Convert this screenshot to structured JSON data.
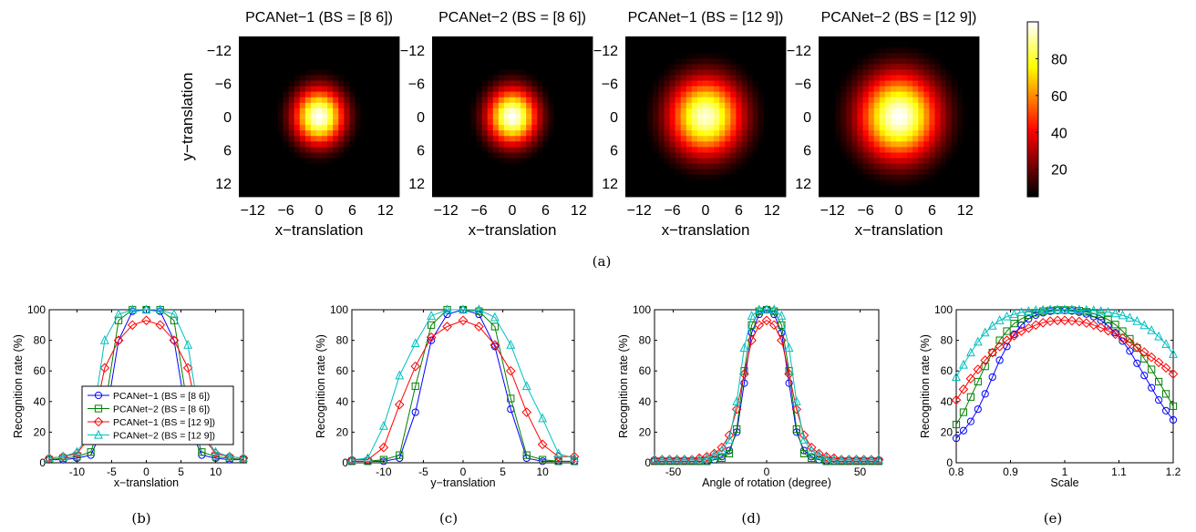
{
  "heatmaps": {
    "panels": [
      {
        "title": "PCANet−1 (BS = [8 6])",
        "sigma_x": 3.2,
        "sigma_y": 3.6,
        "peak": 100
      },
      {
        "title": "PCANet−2 (BS = [8 6])",
        "sigma_x": 3.2,
        "sigma_y": 3.6,
        "peak": 100
      },
      {
        "title": "PCANet−1 (BS = [12 9])",
        "sigma_x": 4.6,
        "sigma_y": 4.9,
        "peak": 96
      },
      {
        "title": "PCANet−2 (BS = [12 9])",
        "sigma_x": 5.0,
        "sigma_y": 5.4,
        "peak": 100
      }
    ],
    "grid_range": [
      -14,
      14
    ],
    "xlabel": "x−translation",
    "ylabel": "y−translation",
    "ticks": [
      "−12",
      "−6",
      "0",
      "6",
      "12"
    ],
    "tick_values": [
      -12,
      -6,
      0,
      6,
      12
    ],
    "colorbar": {
      "ticks": [
        "80",
        "60",
        "40",
        "20"
      ],
      "tick_values": [
        80,
        60,
        40,
        20
      ],
      "range": [
        5,
        100
      ]
    },
    "caption": "(a)"
  },
  "chart_data": [
    {
      "type": "line",
      "caption": "(b)",
      "xlabel": "x−translation",
      "ylabel": "Recognition rate (%)",
      "xlim": [
        -14,
        14
      ],
      "ylim": [
        0,
        100
      ],
      "xticks": [
        -10,
        -5,
        0,
        5,
        10
      ],
      "yticks": [
        0,
        20,
        40,
        60,
        80,
        100
      ],
      "x": [
        -14,
        -12,
        -10,
        -8,
        -6,
        -4,
        -2,
        0,
        2,
        4,
        6,
        8,
        10,
        12,
        14
      ],
      "legend": {
        "position": "bottom-left"
      },
      "series": [
        {
          "name": "PCANet−1 (BS = [8 6])",
          "color": "#0000ff",
          "marker": "circle",
          "values": [
            2,
            2,
            3,
            5,
            25,
            80,
            99,
            100,
            99,
            80,
            25,
            5,
            3,
            2,
            2
          ]
        },
        {
          "name": "PCANet−2 (BS = [8 6])",
          "color": "#008000",
          "marker": "square",
          "values": [
            2,
            3,
            4,
            7,
            35,
            93,
            100,
            100,
            100,
            93,
            35,
            7,
            4,
            3,
            2
          ]
        },
        {
          "name": "PCANet−1 (BS = [12 9])",
          "color": "#ff0000",
          "marker": "diamond",
          "values": [
            3,
            4,
            6,
            18,
            62,
            80,
            90,
            93,
            90,
            80,
            62,
            18,
            6,
            4,
            3
          ]
        },
        {
          "name": "PCANet−2 (BS = [12 9])",
          "color": "#00bfbf",
          "marker": "triangle",
          "values": [
            3,
            4,
            7,
            20,
            80,
            97,
            100,
            100,
            100,
            97,
            77,
            20,
            7,
            4,
            3
          ]
        }
      ]
    },
    {
      "type": "line",
      "caption": "(c)",
      "xlabel": "y−translation",
      "ylabel": "Recognition rate (%)",
      "xlim": [
        -14,
        14
      ],
      "ylim": [
        0,
        100
      ],
      "xticks": [
        -10,
        -5,
        0,
        5,
        10
      ],
      "yticks": [
        0,
        20,
        40,
        60,
        80,
        100
      ],
      "x": [
        -14,
        -12,
        -10,
        -8,
        -6,
        -4,
        -2,
        0,
        2,
        4,
        6,
        8,
        10,
        12,
        14
      ],
      "series": [
        {
          "name": "PCANet−1 (BS = [8 6])",
          "color": "#0000ff",
          "marker": "circle",
          "values": [
            1,
            1,
            1,
            3,
            33,
            80,
            97,
            100,
            97,
            76,
            35,
            3,
            1,
            1,
            1
          ]
        },
        {
          "name": "PCANet−2 (BS = [8 6])",
          "color": "#008000",
          "marker": "square",
          "values": [
            1,
            1,
            2,
            5,
            50,
            90,
            100,
            100,
            99,
            89,
            42,
            5,
            2,
            1,
            1
          ]
        },
        {
          "name": "PCANet−1 (BS = [12 9])",
          "color": "#ff0000",
          "marker": "diamond",
          "values": [
            2,
            2,
            10,
            38,
            63,
            82,
            89,
            93,
            89,
            77,
            60,
            33,
            12,
            4,
            4
          ]
        },
        {
          "name": "PCANet−2 (BS = [12 9])",
          "color": "#00bfbf",
          "marker": "triangle",
          "values": [
            2,
            3,
            24,
            57,
            78,
            96,
            100,
            100,
            100,
            95,
            77,
            50,
            29,
            6,
            3
          ]
        }
      ]
    },
    {
      "type": "line",
      "caption": "(d)",
      "xlabel": "Angle of rotation (degree)",
      "ylabel": "Recognition rate (%)",
      "xlim": [
        -60,
        60
      ],
      "ylim": [
        0,
        100
      ],
      "xticks": [
        -50,
        0,
        50
      ],
      "yticks": [
        0,
        20,
        40,
        60,
        80,
        100
      ],
      "x": [
        -60,
        -56,
        -52,
        -48,
        -44,
        -40,
        -36,
        -32,
        -28,
        -24,
        -20,
        -16,
        -12,
        -8,
        -4,
        0,
        4,
        8,
        12,
        16,
        20,
        24,
        28,
        32,
        36,
        40,
        44,
        48,
        52,
        56,
        60
      ],
      "series": [
        {
          "name": "PCANet−1 (BS = [8 6])",
          "color": "#0000ff",
          "marker": "circle",
          "values": [
            1,
            1,
            1,
            1,
            1,
            1,
            1,
            1,
            2,
            4,
            8,
            20,
            52,
            85,
            97,
            100,
            97,
            85,
            52,
            20,
            8,
            4,
            2,
            1,
            1,
            1,
            1,
            1,
            1,
            1,
            1
          ]
        },
        {
          "name": "PCANet−2 (BS = [8 6])",
          "color": "#008000",
          "marker": "square",
          "values": [
            1,
            1,
            1,
            1,
            1,
            1,
            1,
            1,
            2,
            3,
            6,
            22,
            60,
            90,
            99,
            100,
            99,
            90,
            60,
            22,
            6,
            3,
            2,
            1,
            1,
            1,
            1,
            1,
            1,
            1,
            1
          ]
        },
        {
          "name": "PCANet−1 (BS = [12 9])",
          "color": "#ff0000",
          "marker": "diamond",
          "values": [
            2,
            2,
            2,
            2,
            2,
            2,
            3,
            4,
            6,
            10,
            18,
            35,
            58,
            80,
            90,
            93,
            90,
            80,
            58,
            35,
            18,
            10,
            6,
            4,
            3,
            2,
            2,
            2,
            2,
            2,
            2
          ]
        },
        {
          "name": "PCANet−2 (BS = [12 9])",
          "color": "#00bfbf",
          "marker": "triangle",
          "values": [
            2,
            2,
            2,
            2,
            2,
            2,
            2,
            3,
            5,
            8,
            15,
            40,
            75,
            96,
            100,
            100,
            100,
            96,
            75,
            40,
            15,
            8,
            5,
            3,
            2,
            2,
            2,
            2,
            2,
            2,
            2
          ]
        }
      ]
    },
    {
      "type": "line",
      "caption": "(e)",
      "xlabel": "Scale",
      "ylabel": "Recognition rate (%)",
      "xlim": [
        0.8,
        1.2
      ],
      "ylim": [
        0,
        100
      ],
      "xticks": [
        0.8,
        0.9,
        1,
        1.1,
        1.2
      ],
      "xtick_labels": [
        "0.8",
        "0.9",
        "1",
        "1.1",
        "1.2"
      ],
      "yticks": [
        0,
        20,
        40,
        60,
        80,
        100
      ],
      "x": [
        0.8,
        0.8133,
        0.8267,
        0.84,
        0.8533,
        0.8667,
        0.88,
        0.8933,
        0.9067,
        0.92,
        0.9333,
        0.9467,
        0.96,
        0.9733,
        0.9867,
        1.0,
        1.0133,
        1.0267,
        1.04,
        1.0533,
        1.0667,
        1.08,
        1.0933,
        1.1067,
        1.12,
        1.1333,
        1.1467,
        1.16,
        1.1733,
        1.1867,
        1.2
      ],
      "series": [
        {
          "name": "PCANet−1 (BS = [8 6])",
          "color": "#0000ff",
          "marker": "circle",
          "values": [
            16,
            21,
            27,
            35,
            45,
            56,
            67,
            76,
            84,
            90,
            94,
            96.5,
            98,
            99,
            99.5,
            99.5,
            99.2,
            98.4,
            97.2,
            95.5,
            93,
            89.5,
            85,
            79.5,
            73,
            65,
            57,
            49,
            41,
            34,
            28
          ]
        },
        {
          "name": "PCANet−2 (BS = [8 6])",
          "color": "#008000",
          "marker": "square",
          "values": [
            25,
            33,
            43,
            53,
            63,
            72,
            80,
            86,
            91,
            94,
            96.5,
            98,
            99,
            99.5,
            99.8,
            99.8,
            99.7,
            99.3,
            98.6,
            97.5,
            95.8,
            93.5,
            90.3,
            86,
            81,
            75,
            68,
            61,
            53,
            45,
            37
          ]
        },
        {
          "name": "PCANet−1 (BS = [12 9])",
          "color": "#ff0000",
          "marker": "diamond",
          "values": [
            41,
            48,
            55,
            61,
            67,
            72,
            76,
            80,
            83,
            86,
            88,
            90,
            91.5,
            92.5,
            93,
            93,
            92.8,
            92.3,
            91.3,
            90,
            88.3,
            86.3,
            84,
            81.5,
            78.6,
            75.5,
            72.3,
            69,
            65.6,
            62,
            58
          ]
        },
        {
          "name": "PCANet−2 (BS = [12 9])",
          "color": "#00bfbf",
          "marker": "triangle",
          "values": [
            56,
            64,
            72,
            79,
            85,
            89.5,
            93,
            95.5,
            97,
            98.3,
            99,
            99.5,
            99.8,
            100,
            100,
            100,
            100,
            99.9,
            99.7,
            99.4,
            99,
            98.4,
            97.5,
            96.3,
            94.7,
            92.5,
            89.8,
            86.5,
            82.5,
            77.5,
            71
          ]
        }
      ]
    }
  ]
}
